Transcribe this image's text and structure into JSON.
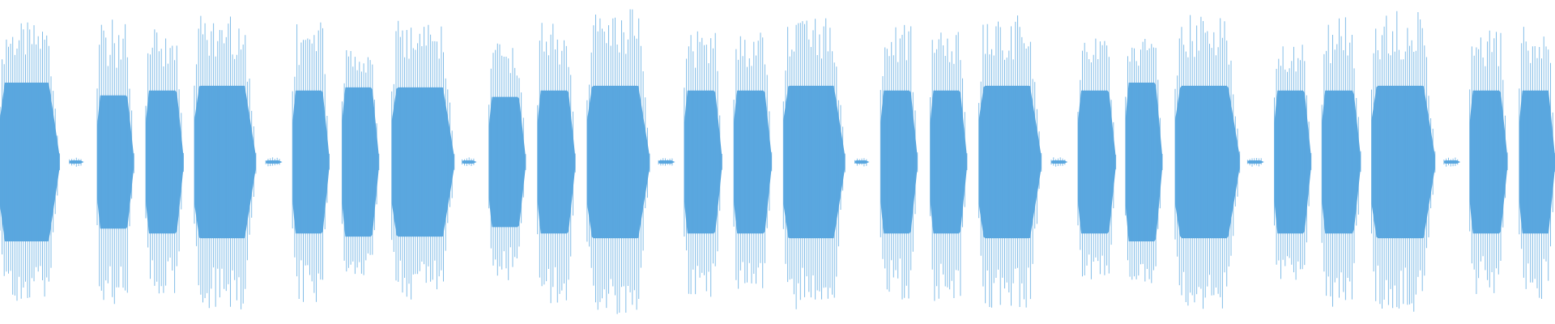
{
  "chart_data": {
    "type": "waveform",
    "color": "#5aa7df",
    "xlim": [
      0,
      1568
    ],
    "ylim": [
      -1,
      1
    ],
    "bursts": [
      {
        "start": 0,
        "end": 60,
        "peak": 0.88,
        "core": 0.5
      },
      {
        "start": 70,
        "end": 84,
        "peak": 0.03,
        "core": 0.01
      },
      {
        "start": 98,
        "end": 135,
        "peak": 0.9,
        "core": 0.42
      },
      {
        "start": 147,
        "end": 185,
        "peak": 0.85,
        "core": 0.45
      },
      {
        "start": 196,
        "end": 258,
        "peak": 0.93,
        "core": 0.48
      },
      {
        "start": 268,
        "end": 284,
        "peak": 0.03,
        "core": 0.01
      },
      {
        "start": 295,
        "end": 332,
        "peak": 0.89,
        "core": 0.45
      },
      {
        "start": 345,
        "end": 382,
        "peak": 0.72,
        "core": 0.47
      },
      {
        "start": 395,
        "end": 458,
        "peak": 0.9,
        "core": 0.47
      },
      {
        "start": 466,
        "end": 480,
        "peak": 0.03,
        "core": 0.01
      },
      {
        "start": 493,
        "end": 530,
        "peak": 0.75,
        "core": 0.41
      },
      {
        "start": 542,
        "end": 580,
        "peak": 0.89,
        "core": 0.45
      },
      {
        "start": 592,
        "end": 655,
        "peak": 0.97,
        "core": 0.48
      },
      {
        "start": 664,
        "end": 680,
        "peak": 0.03,
        "core": 0.01
      },
      {
        "start": 690,
        "end": 728,
        "peak": 0.86,
        "core": 0.45
      },
      {
        "start": 740,
        "end": 778,
        "peak": 0.86,
        "core": 0.45
      },
      {
        "start": 790,
        "end": 852,
        "peak": 0.93,
        "core": 0.48
      },
      {
        "start": 862,
        "end": 876,
        "peak": 0.03,
        "core": 0.01
      },
      {
        "start": 888,
        "end": 925,
        "peak": 0.88,
        "core": 0.45
      },
      {
        "start": 938,
        "end": 975,
        "peak": 0.88,
        "core": 0.45
      },
      {
        "start": 987,
        "end": 1050,
        "peak": 0.93,
        "core": 0.48
      },
      {
        "start": 1060,
        "end": 1076,
        "peak": 0.03,
        "core": 0.01
      },
      {
        "start": 1087,
        "end": 1125,
        "peak": 0.78,
        "core": 0.45
      },
      {
        "start": 1135,
        "end": 1172,
        "peak": 0.78,
        "core": 0.5
      },
      {
        "start": 1185,
        "end": 1250,
        "peak": 0.94,
        "core": 0.48
      },
      {
        "start": 1258,
        "end": 1274,
        "peak": 0.03,
        "core": 0.01
      },
      {
        "start": 1285,
        "end": 1322,
        "peak": 0.75,
        "core": 0.45
      },
      {
        "start": 1333,
        "end": 1372,
        "peak": 0.93,
        "core": 0.45
      },
      {
        "start": 1383,
        "end": 1447,
        "peak": 0.95,
        "core": 0.48
      },
      {
        "start": 1456,
        "end": 1472,
        "peak": 0.03,
        "core": 0.01
      },
      {
        "start": 1482,
        "end": 1520,
        "peak": 0.85,
        "core": 0.45
      },
      {
        "start": 1532,
        "end": 1568,
        "peak": 0.88,
        "core": 0.45
      }
    ]
  }
}
